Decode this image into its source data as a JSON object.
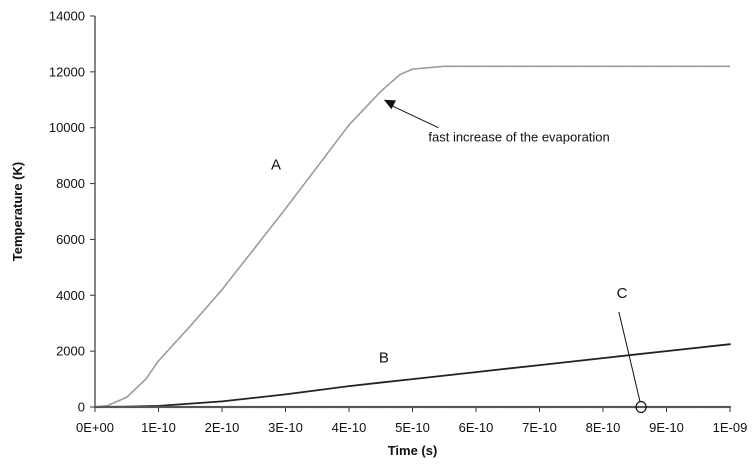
{
  "chart_data": {
    "type": "line",
    "xlabel": "Time (s)",
    "ylabel": "Temperature (K)",
    "xlim": [
      0,
      1e-09
    ],
    "ylim": [
      0,
      14000
    ],
    "x_ticks": [
      "0E+00",
      "1E-10",
      "2E-10",
      "3E-10",
      "4E-10",
      "5E-10",
      "6E-10",
      "7E-10",
      "8E-10",
      "9E-10",
      "1E-09"
    ],
    "y_ticks": [
      "0",
      "2000",
      "4000",
      "6000",
      "8000",
      "10000",
      "12000",
      "14000"
    ],
    "grid": false,
    "series": [
      {
        "name": "A",
        "color": "#9a9a9a",
        "points": [
          [
            0,
            0
          ],
          [
            2e-11,
            50
          ],
          [
            5e-11,
            350
          ],
          [
            8e-11,
            1000
          ],
          [
            1e-10,
            1650
          ],
          [
            1.5e-10,
            2900
          ],
          [
            2e-10,
            4200
          ],
          [
            2.5e-10,
            5650
          ],
          [
            3e-10,
            7100
          ],
          [
            3.5e-10,
            8600
          ],
          [
            4e-10,
            10100
          ],
          [
            4.5e-10,
            11300
          ],
          [
            4.8e-10,
            11900
          ],
          [
            5e-10,
            12100
          ],
          [
            5.5e-10,
            12200
          ],
          [
            6e-10,
            12200
          ],
          [
            7e-10,
            12200
          ],
          [
            8e-10,
            12200
          ],
          [
            9e-10,
            12200
          ],
          [
            1e-09,
            12200
          ]
        ]
      },
      {
        "name": "B",
        "color": "#222222",
        "points": [
          [
            0,
            0
          ],
          [
            5e-11,
            10
          ],
          [
            1e-10,
            40
          ],
          [
            2e-10,
            200
          ],
          [
            3e-10,
            450
          ],
          [
            4e-10,
            750
          ],
          [
            5e-10,
            1000
          ],
          [
            6e-10,
            1250
          ],
          [
            7e-10,
            1500
          ],
          [
            8e-10,
            1750
          ],
          [
            9e-10,
            2000
          ],
          [
            1e-09,
            2250
          ]
        ]
      },
      {
        "name": "C",
        "color": "#555555",
        "points": [
          [
            0,
            0
          ],
          [
            2e-10,
            0
          ],
          [
            4e-10,
            0
          ],
          [
            6e-10,
            0
          ],
          [
            8e-10,
            0
          ],
          [
            1e-09,
            0
          ]
        ]
      }
    ],
    "curve_labels": [
      {
        "text": "A",
        "x": 2.85e-10,
        "y": 8500
      },
      {
        "text": "B",
        "x": 4.55e-10,
        "y": 1600
      },
      {
        "text": "C",
        "x": 8.3e-10,
        "y": 3900
      }
    ],
    "annotations": [
      {
        "text": "fast increase of the evaporation",
        "text_x": 5.25e-10,
        "text_y": 9500,
        "arrow_to_x": 4.55e-10,
        "arrow_to_y": 11000
      }
    ],
    "c_marker": {
      "x": 8.6e-10,
      "y": 0,
      "pointer_from_x": 8.25e-10,
      "pointer_from_y": 3400
    }
  }
}
